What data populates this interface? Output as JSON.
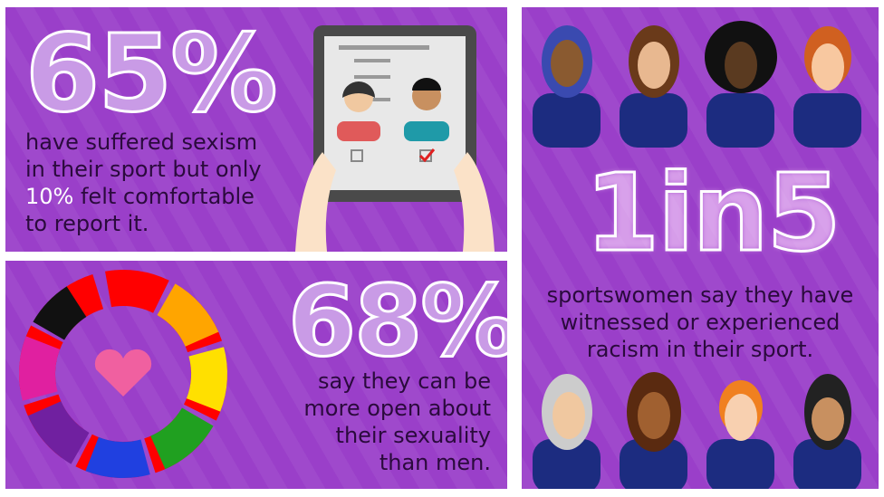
{
  "panel1": {
    "stat": "65%",
    "line1": "have suffered sexism",
    "line2": "in their sport but only",
    "highlight": "10%",
    "line3_rest": " felt comfortable",
    "line4": "to report it."
  },
  "panel2": {
    "stat": "68%",
    "lines": [
      "say they can be",
      "more open about",
      "their sexuality",
      "than men."
    ]
  },
  "panel3": {
    "stat": "1in5",
    "lines": [
      "sportswomen say they have",
      "witnessed or experienced",
      "racism in their sport."
    ]
  },
  "colors": {
    "background": "#9a3fc9",
    "text": "#2b0a3d",
    "highlight": "#ffffff"
  }
}
